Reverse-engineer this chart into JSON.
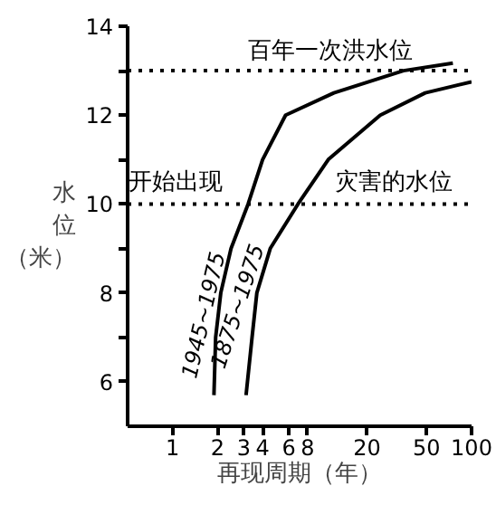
{
  "chart_data": {
    "type": "line",
    "xlabel": "再现周期（年）",
    "ylabel": "水位（米）",
    "log": "x",
    "xlim": [
      0.5,
      100
    ],
    "ylim": [
      5,
      14
    ],
    "xticks": [
      1,
      2,
      3,
      4,
      6,
      8,
      20,
      50,
      100
    ],
    "yticks": [
      6,
      {
        "value": 7,
        "label": null
      },
      8,
      {
        "value": 9,
        "label": null
      },
      10,
      {
        "value": 11,
        "label": null
      },
      12,
      {
        "value": 13,
        "label": null
      },
      14
    ],
    "grid": false,
    "marker": "none",
    "line_style": "solid",
    "series": [
      {
        "name": "1945~1975",
        "color": "#000000",
        "x": [
          1.89,
          1.94,
          2.1,
          2.46,
          3.2,
          4,
          5.7,
          12,
          35,
          75
        ],
        "values": [
          5.7,
          7,
          8,
          9,
          10,
          11,
          12,
          12.5,
          13,
          13.17
        ]
      },
      {
        "name": "1875~1975",
        "color": "#000000",
        "x": [
          3.1,
          3.4,
          3.66,
          4.5,
          6.9,
          11,
          24.5,
          49,
          100
        ],
        "values": [
          5.7,
          7,
          8,
          9,
          10,
          11,
          12,
          12.5,
          12.75
        ]
      }
    ],
    "ref_lines": [
      {
        "axis": "y",
        "value": 13,
        "label": "百年一次洪水位",
        "line_style": "dotted",
        "color": "#000000"
      },
      {
        "axis": "y",
        "value": 10,
        "label": null,
        "line_style": "dotted",
        "color": "#000000"
      }
    ],
    "annotations": [
      {
        "text": "开始出现",
        "x": 1.05,
        "y": 10
      },
      {
        "text": "灾害的水位",
        "x": 30,
        "y": 10
      }
    ]
  }
}
